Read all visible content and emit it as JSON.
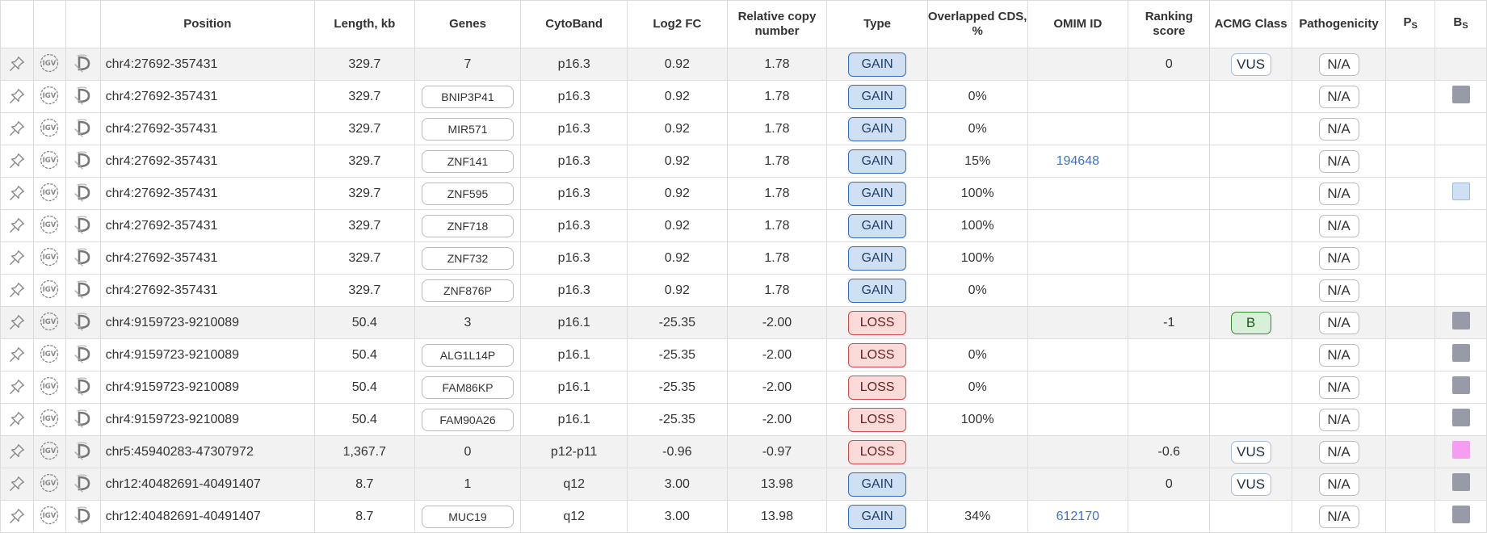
{
  "headers": {
    "position": "Position",
    "length": "Length, kb",
    "genes": "Genes",
    "cytoband": "CytoBand",
    "log2fc": "Log2 FC",
    "rcn": "Relative copy number",
    "type": "Type",
    "cds": "Overlapped CDS, %",
    "omim": "OMIM ID",
    "ranking": "Ranking score",
    "acmg": "ACMG Class",
    "pathogenicity": "Pathogenicity",
    "ps_main": "P",
    "ps_sub": "S",
    "bs_main": "B",
    "bs_sub": "S"
  },
  "icons": [
    "pin-icon",
    "igv-icon",
    "decipher-icon"
  ],
  "colors": {
    "gain_bg": "#cfe0f5",
    "gain_border": "#2f6fc0",
    "loss_bg": "#fbdada",
    "loss_border": "#d24a4a",
    "benign_bg": "#d8efd8",
    "benign_border": "#2e8b2e",
    "bs_gray": "#999aa8",
    "bs_light": "#cfe0f5",
    "bs_pink": "#f59df1",
    "omim_link": "#3b73c9",
    "parent_row_bg": "#f2f2f2"
  },
  "rows": [
    {
      "parent": true,
      "position": "chr4:27692-357431",
      "length": "329.7",
      "genes": "7",
      "gene_is_box": false,
      "cytoband": "p16.3",
      "log2fc": "0.92",
      "rcn": "1.78",
      "type": "GAIN",
      "cds": "",
      "omim": "",
      "ranking": "0",
      "acmg": "VUS",
      "pathogenicity": "N/A",
      "bs": ""
    },
    {
      "parent": false,
      "position": "chr4:27692-357431",
      "length": "329.7",
      "genes": "BNIP3P41",
      "gene_is_box": true,
      "cytoband": "p16.3",
      "log2fc": "0.92",
      "rcn": "1.78",
      "type": "GAIN",
      "cds": "0%",
      "omim": "",
      "ranking": "",
      "acmg": "",
      "pathogenicity": "N/A",
      "bs": "gray"
    },
    {
      "parent": false,
      "position": "chr4:27692-357431",
      "length": "329.7",
      "genes": "MIR571",
      "gene_is_box": true,
      "cytoband": "p16.3",
      "log2fc": "0.92",
      "rcn": "1.78",
      "type": "GAIN",
      "cds": "0%",
      "omim": "",
      "ranking": "",
      "acmg": "",
      "pathogenicity": "N/A",
      "bs": ""
    },
    {
      "parent": false,
      "position": "chr4:27692-357431",
      "length": "329.7",
      "genes": "ZNF141",
      "gene_is_box": true,
      "cytoband": "p16.3",
      "log2fc": "0.92",
      "rcn": "1.78",
      "type": "GAIN",
      "cds": "15%",
      "omim": "194648",
      "ranking": "",
      "acmg": "",
      "pathogenicity": "N/A",
      "bs": ""
    },
    {
      "parent": false,
      "position": "chr4:27692-357431",
      "length": "329.7",
      "genes": "ZNF595",
      "gene_is_box": true,
      "cytoband": "p16.3",
      "log2fc": "0.92",
      "rcn": "1.78",
      "type": "GAIN",
      "cds": "100%",
      "omim": "",
      "ranking": "",
      "acmg": "",
      "pathogenicity": "N/A",
      "bs": "light"
    },
    {
      "parent": false,
      "position": "chr4:27692-357431",
      "length": "329.7",
      "genes": "ZNF718",
      "gene_is_box": true,
      "cytoband": "p16.3",
      "log2fc": "0.92",
      "rcn": "1.78",
      "type": "GAIN",
      "cds": "100%",
      "omim": "",
      "ranking": "",
      "acmg": "",
      "pathogenicity": "N/A",
      "bs": ""
    },
    {
      "parent": false,
      "position": "chr4:27692-357431",
      "length": "329.7",
      "genes": "ZNF732",
      "gene_is_box": true,
      "cytoband": "p16.3",
      "log2fc": "0.92",
      "rcn": "1.78",
      "type": "GAIN",
      "cds": "100%",
      "omim": "",
      "ranking": "",
      "acmg": "",
      "pathogenicity": "N/A",
      "bs": ""
    },
    {
      "parent": false,
      "position": "chr4:27692-357431",
      "length": "329.7",
      "genes": "ZNF876P",
      "gene_is_box": true,
      "cytoband": "p16.3",
      "log2fc": "0.92",
      "rcn": "1.78",
      "type": "GAIN",
      "cds": "0%",
      "omim": "",
      "ranking": "",
      "acmg": "",
      "pathogenicity": "N/A",
      "bs": ""
    },
    {
      "parent": true,
      "position": "chr4:9159723-9210089",
      "length": "50.4",
      "genes": "3",
      "gene_is_box": false,
      "cytoband": "p16.1",
      "log2fc": "-25.35",
      "rcn": "-2.00",
      "type": "LOSS",
      "cds": "",
      "omim": "",
      "ranking": "-1",
      "acmg": "B",
      "pathogenicity": "N/A",
      "bs": "gray"
    },
    {
      "parent": false,
      "position": "chr4:9159723-9210089",
      "length": "50.4",
      "genes": "ALG1L14P",
      "gene_is_box": true,
      "cytoband": "p16.1",
      "log2fc": "-25.35",
      "rcn": "-2.00",
      "type": "LOSS",
      "cds": "0%",
      "omim": "",
      "ranking": "",
      "acmg": "",
      "pathogenicity": "N/A",
      "bs": "gray"
    },
    {
      "parent": false,
      "position": "chr4:9159723-9210089",
      "length": "50.4",
      "genes": "FAM86KP",
      "gene_is_box": true,
      "cytoband": "p16.1",
      "log2fc": "-25.35",
      "rcn": "-2.00",
      "type": "LOSS",
      "cds": "0%",
      "omim": "",
      "ranking": "",
      "acmg": "",
      "pathogenicity": "N/A",
      "bs": "gray"
    },
    {
      "parent": false,
      "position": "chr4:9159723-9210089",
      "length": "50.4",
      "genes": "FAM90A26",
      "gene_is_box": true,
      "cytoband": "p16.1",
      "log2fc": "-25.35",
      "rcn": "-2.00",
      "type": "LOSS",
      "cds": "100%",
      "omim": "",
      "ranking": "",
      "acmg": "",
      "pathogenicity": "N/A",
      "bs": "gray"
    },
    {
      "parent": true,
      "position": "chr5:45940283-47307972",
      "length": "1,367.7",
      "genes": "0",
      "gene_is_box": false,
      "cytoband": "p12-p11",
      "log2fc": "-0.96",
      "rcn": "-0.97",
      "type": "LOSS",
      "cds": "",
      "omim": "",
      "ranking": "-0.6",
      "acmg": "VUS",
      "pathogenicity": "N/A",
      "bs": "pink"
    },
    {
      "parent": true,
      "position": "chr12:40482691-40491407",
      "length": "8.7",
      "genes": "1",
      "gene_is_box": false,
      "cytoband": "q12",
      "log2fc": "3.00",
      "rcn": "13.98",
      "type": "GAIN",
      "cds": "",
      "omim": "",
      "ranking": "0",
      "acmg": "VUS",
      "pathogenicity": "N/A",
      "bs": "gray"
    },
    {
      "parent": false,
      "position": "chr12:40482691-40491407",
      "length": "8.7",
      "genes": "MUC19",
      "gene_is_box": true,
      "cytoband": "q12",
      "log2fc": "3.00",
      "rcn": "13.98",
      "type": "GAIN",
      "cds": "34%",
      "omim": "612170",
      "ranking": "",
      "acmg": "",
      "pathogenicity": "N/A",
      "bs": "gray"
    }
  ]
}
